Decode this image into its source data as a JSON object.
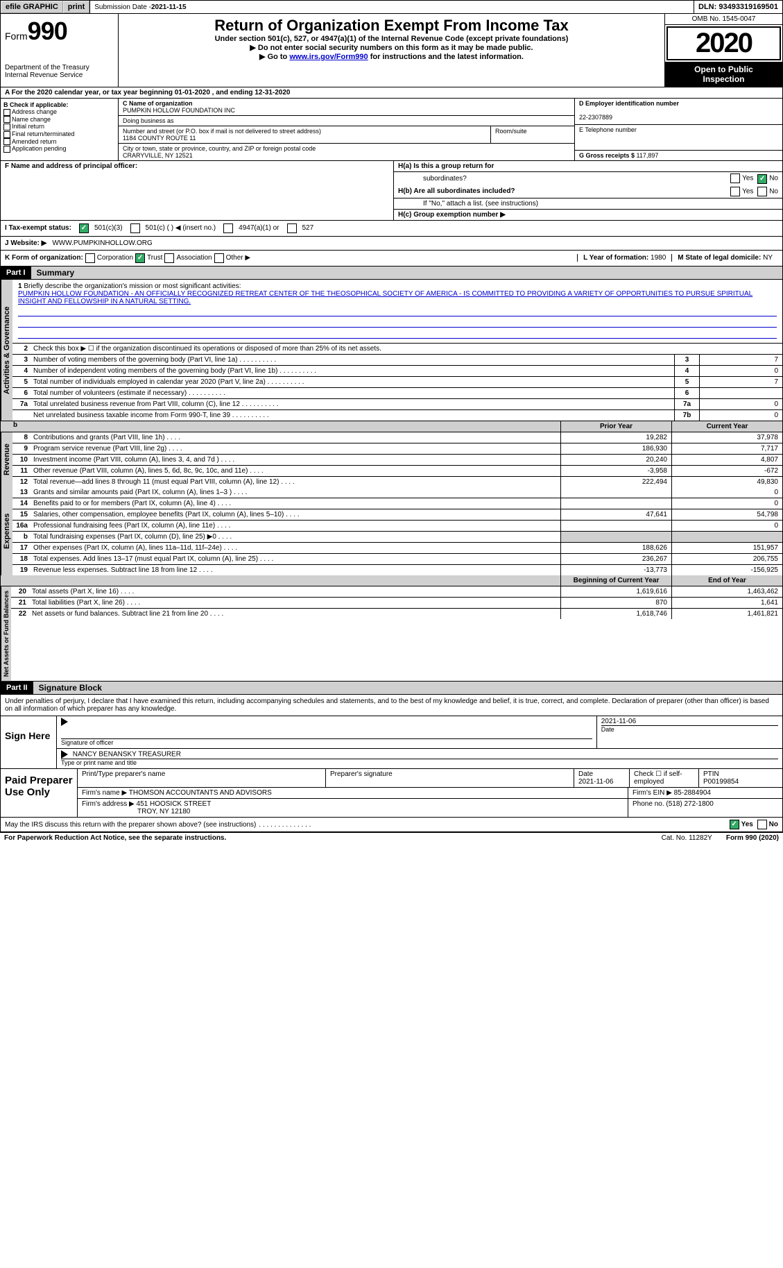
{
  "topbar": {
    "efile": "efile GRAPHIC",
    "print": "print",
    "sub_label": "Submission Date - ",
    "sub_date": "2021-11-15",
    "dln": "DLN: 93493319169501"
  },
  "header": {
    "form_word": "Form",
    "form_no": "990",
    "dept": "Department of the Treasury",
    "irs": "Internal Revenue Service",
    "title": "Return of Organization Exempt From Income Tax",
    "sub1": "Under section 501(c), 527, or 4947(a)(1) of the Internal Revenue Code (except private foundations)",
    "sub2": "▶ Do not enter social security numbers on this form as it may be made public.",
    "goto_pre": "▶ Go to ",
    "goto_link": "www.irs.gov/Form990",
    "goto_post": " for instructions and the latest information.",
    "omb": "OMB No. 1545-0047",
    "year": "2020",
    "otp1": "Open to Public",
    "otp2": "Inspection"
  },
  "row_a": "A For the 2020 calendar year, or tax year beginning 01-01-2020    , and ending 12-31-2020",
  "col_b": {
    "title": "B Check if applicable:",
    "o1": "Address change",
    "o2": "Name change",
    "o3": "Initial return",
    "o4": "Final return/terminated",
    "o5": "Amended return",
    "o6": "Application pending"
  },
  "col_c": {
    "name_lab": "C Name of organization",
    "name": "PUMPKIN HOLLOW FOUNDATION INC",
    "dba_lab": "Doing business as",
    "addr_lab": "Number and street (or P.O. box if mail is not delivered to street address)",
    "room_lab": "Room/suite",
    "addr": "1184 COUNTY ROUTE 11",
    "city_lab": "City or town, state or province, country, and ZIP or foreign postal code",
    "city": "CRARYVILLE, NY  12521"
  },
  "col_d": {
    "ein_lab": "D Employer identification number",
    "ein": "22-2307889",
    "tel_lab": "E Telephone number",
    "gross_lab": "G Gross receipts $ ",
    "gross": "117,897"
  },
  "row_f": {
    "f_lab": "F  Name and address of principal officer:",
    "ha_lab": "H(a)  Is this a group return for",
    "ha_lab2": "subordinates?",
    "hb_lab": "H(b)  Are all subordinates included?",
    "hb_note": "If \"No,\" attach a list. (see instructions)",
    "hc_lab": "H(c)  Group exemption number ▶",
    "yes": "Yes",
    "no": "No"
  },
  "row_i": {
    "lab": "I  Tax-exempt status:",
    "o1": "501(c)(3)",
    "o2": "501(c) (   ) ◀ (insert no.)",
    "o3": "4947(a)(1) or",
    "o4": "527"
  },
  "row_j": {
    "lab": "J  Website: ▶",
    "val": "WWW.PUMPKINHOLLOW.ORG"
  },
  "row_k": {
    "lab": "K Form of organization:",
    "o1": "Corporation",
    "o2": "Trust",
    "o3": "Association",
    "o4": "Other ▶",
    "l_lab": "L Year of formation: ",
    "l_val": "1980",
    "m_lab": "M State of legal domicile: ",
    "m_val": "NY"
  },
  "part1": {
    "hdr": "Part I",
    "title": "Summary",
    "q1": "Briefly describe the organization's mission or most significant activities:",
    "mission": "PUMPKIN HOLLOW FOUNDATION - AN OFFICIALLY RECOGNIZED RETREAT CENTER OF THE THEOSOPHICAL SOCIETY OF AMERICA - IS COMMITTED TO PROVIDING A VARIETY OF OPPORTUNITIES TO PURSUE SPIRITUAL INSIGHT AND FELLOWSHIP IN A NATURAL SETTING.",
    "q2": "Check this box ▶ ☐  if the organization discontinued its operations or disposed of more than 25% of its net assets.",
    "side1": "Activities & Governance",
    "rows": [
      {
        "n": "3",
        "t": "Number of voting members of the governing body (Part VI, line 1a)",
        "c": "3",
        "v": "7"
      },
      {
        "n": "4",
        "t": "Number of independent voting members of the governing body (Part VI, line 1b)",
        "c": "4",
        "v": "0"
      },
      {
        "n": "5",
        "t": "Total number of individuals employed in calendar year 2020 (Part V, line 2a)",
        "c": "5",
        "v": "7"
      },
      {
        "n": "6",
        "t": "Total number of volunteers (estimate if necessary)",
        "c": "6",
        "v": ""
      },
      {
        "n": "7a",
        "t": "Total unrelated business revenue from Part VIII, column (C), line 12",
        "c": "7a",
        "v": "0"
      },
      {
        "n": "",
        "t": "Net unrelated business taxable income from Form 990-T, line 39",
        "c": "7b",
        "v": "0"
      }
    ]
  },
  "fin": {
    "prior": "Prior Year",
    "current": "Current Year",
    "boy": "Beginning of Current Year",
    "eoy": "End of Year",
    "revenue_label": "Revenue",
    "expenses_label": "Expenses",
    "netassets_label": "Net Assets or Fund Balances",
    "revenue": [
      {
        "n": "8",
        "t": "Contributions and grants (Part VIII, line 1h)",
        "p": "19,282",
        "c": "37,978"
      },
      {
        "n": "9",
        "t": "Program service revenue (Part VIII, line 2g)",
        "p": "186,930",
        "c": "7,717"
      },
      {
        "n": "10",
        "t": "Investment income (Part VIII, column (A), lines 3, 4, and 7d )",
        "p": "20,240",
        "c": "4,807"
      },
      {
        "n": "11",
        "t": "Other revenue (Part VIII, column (A), lines 5, 6d, 8c, 9c, 10c, and 11e)",
        "p": "-3,958",
        "c": "-672"
      },
      {
        "n": "12",
        "t": "Total revenue—add lines 8 through 11 (must equal Part VIII, column (A), line 12)",
        "p": "222,494",
        "c": "49,830"
      }
    ],
    "expenses": [
      {
        "n": "13",
        "t": "Grants and similar amounts paid (Part IX, column (A), lines 1–3 )",
        "p": "",
        "c": "0"
      },
      {
        "n": "14",
        "t": "Benefits paid to or for members (Part IX, column (A), line 4)",
        "p": "",
        "c": "0"
      },
      {
        "n": "15",
        "t": "Salaries, other compensation, employee benefits (Part IX, column (A), lines 5–10)",
        "p": "47,641",
        "c": "54,798"
      },
      {
        "n": "16a",
        "t": "Professional fundraising fees (Part IX, column (A), line 11e)",
        "p": "",
        "c": "0"
      },
      {
        "n": "b",
        "t": "Total fundraising expenses (Part IX, column (D), line 25) ▶0",
        "p": "grey",
        "c": "grey"
      },
      {
        "n": "17",
        "t": "Other expenses (Part IX, column (A), lines 11a–11d, 11f–24e)",
        "p": "188,626",
        "c": "151,957"
      },
      {
        "n": "18",
        "t": "Total expenses. Add lines 13–17 (must equal Part IX, column (A), line 25)",
        "p": "236,267",
        "c": "206,755"
      },
      {
        "n": "19",
        "t": "Revenue less expenses. Subtract line 18 from line 12",
        "p": "-13,773",
        "c": "-156,925"
      }
    ],
    "netassets": [
      {
        "n": "20",
        "t": "Total assets (Part X, line 16)",
        "p": "1,619,616",
        "c": "1,463,462"
      },
      {
        "n": "21",
        "t": "Total liabilities (Part X, line 26)",
        "p": "870",
        "c": "1,641"
      },
      {
        "n": "22",
        "t": "Net assets or fund balances. Subtract line 21 from line 20",
        "p": "1,618,746",
        "c": "1,461,821"
      }
    ]
  },
  "part2": {
    "hdr": "Part II",
    "title": "Signature Block",
    "decl": "Under penalties of perjury, I declare that I have examined this return, including accompanying schedules and statements, and to the best of my knowledge and belief, it is true, correct, and complete. Declaration of preparer (other than officer) is based on all information of which preparer has any knowledge."
  },
  "sign": {
    "lab": "Sign Here",
    "sig_of": "Signature of officer",
    "date_lab": "Date",
    "date": "2021-11-06",
    "name": "NANCY BENANSKY  TREASURER",
    "type_lab": "Type or print name and title"
  },
  "paid": {
    "lab": "Paid Preparer Use Only",
    "c1": "Print/Type preparer's name",
    "c2": "Preparer's signature",
    "c3": "Date",
    "c3v": "2021-11-06",
    "c4": "Check ☐ if self-employed",
    "c5": "PTIN",
    "c5v": "P00199854",
    "firm_lab": "Firm's name     ▶",
    "firm": "THOMSON ACCOUNTANTS AND ADVISORS",
    "ein_lab": "Firm's EIN ▶ ",
    "ein": "85-2884904",
    "addr_lab": "Firm's address ▶",
    "addr1": "451 HOOSICK STREET",
    "addr2": "TROY, NY  12180",
    "phone_lab": "Phone no. ",
    "phone": "(518) 272-1800"
  },
  "discuss": {
    "q": "May the IRS discuss this return with the preparer shown above? (see instructions)",
    "yes": "Yes",
    "no": "No"
  },
  "footer": {
    "l": "For Paperwork Reduction Act Notice, see the separate instructions.",
    "c": "Cat. No. 11282Y",
    "r": "Form 990 (2020)"
  }
}
